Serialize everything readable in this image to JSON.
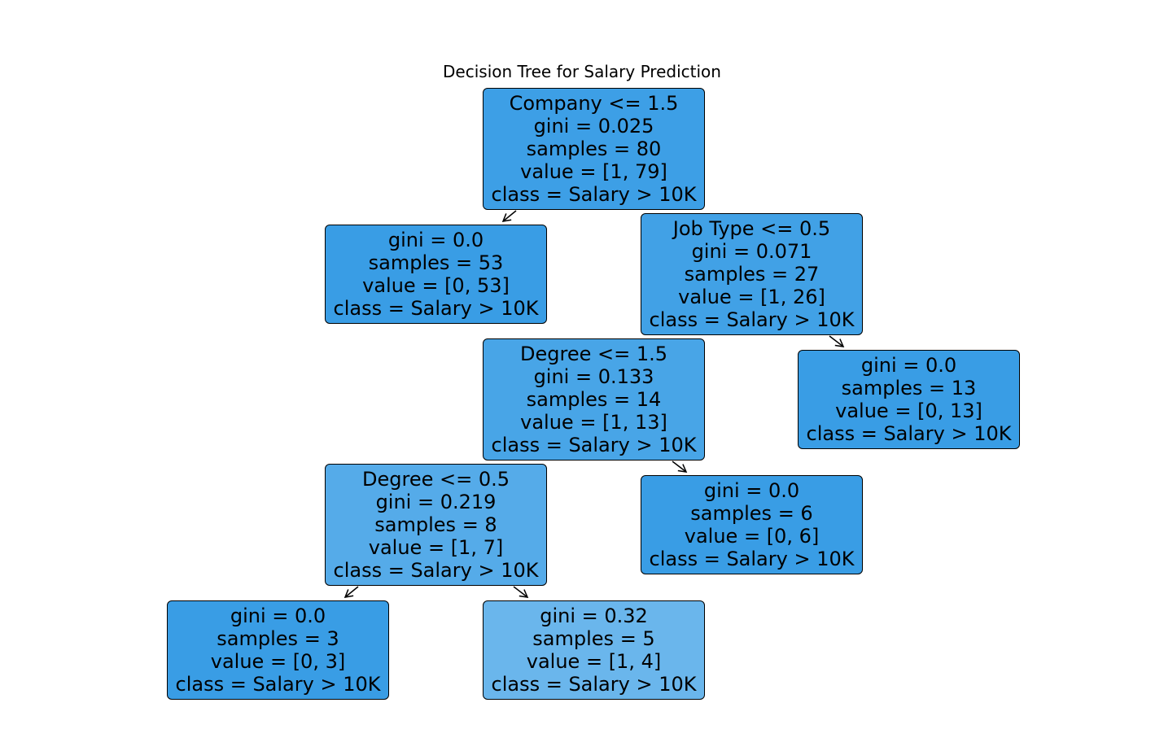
{
  "title": "Decision Tree for Salary Prediction",
  "nodes": {
    "root": {
      "split": "Company <= 1.5",
      "gini": "gini = 0.025",
      "samples": "samples = 80",
      "value": "value = [1, 79]",
      "class": "class = Salary > 10K",
      "fill": "#3d9fe6"
    },
    "leaf1": {
      "gini": "gini = 0.0",
      "samples": "samples = 53",
      "value": "value = [0, 53]",
      "class": "class = Salary > 10K",
      "fill": "#399de5"
    },
    "jobtype": {
      "split": "Job Type <= 0.5",
      "gini": "gini = 0.071",
      "samples": "samples = 27",
      "value": "value = [1, 26]",
      "class": "class = Salary > 10K",
      "fill": "#41a1e6"
    },
    "degree15": {
      "split": "Degree <= 1.5",
      "gini": "gini = 0.133",
      "samples": "samples = 14",
      "value": "value = [1, 13]",
      "class": "class = Salary > 10K",
      "fill": "#48a5e7"
    },
    "leaf13": {
      "gini": "gini = 0.0",
      "samples": "samples = 13",
      "value": "value = [0, 13]",
      "class": "class = Salary > 10K",
      "fill": "#399de5"
    },
    "degree05": {
      "split": "Degree <= 0.5",
      "gini": "gini = 0.219",
      "samples": "samples = 8",
      "value": "value = [1, 7]",
      "class": "class = Salary > 10K",
      "fill": "#55abe9"
    },
    "leaf6": {
      "gini": "gini = 0.0",
      "samples": "samples = 6",
      "value": "value = [0, 6]",
      "class": "class = Salary > 10K",
      "fill": "#399de5"
    },
    "leaf3": {
      "gini": "gini = 0.0",
      "samples": "samples = 3",
      "value": "value = [0, 3]",
      "class": "class = Salary > 10K",
      "fill": "#399de5"
    },
    "leaf5": {
      "gini": "gini = 0.32",
      "samples": "samples = 5",
      "value": "value = [1, 4]",
      "class": "class = Salary > 10K",
      "fill": "#6ab6ec"
    }
  }
}
